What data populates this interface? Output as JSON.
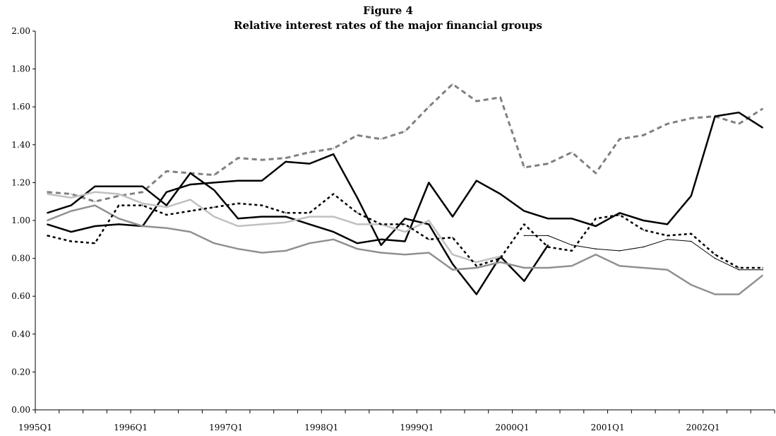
{
  "chart_data": {
    "type": "line",
    "title": "Figure 4",
    "subtitle": "Relative interest rates of the major financial groups",
    "xlabel": "",
    "ylabel": "",
    "ylim": [
      0,
      2
    ],
    "yticks": [
      "0.00",
      "0.20",
      "0.40",
      "0.60",
      "0.80",
      "1.00",
      "1.20",
      "1.40",
      "1.60",
      "1.80",
      "2.00"
    ],
    "categories": [
      "1995Q1",
      "1995Q2",
      "1995Q3",
      "1995Q4",
      "1996Q1",
      "1996Q2",
      "1996Q3",
      "1996Q4",
      "1997Q1",
      "1997Q2",
      "1997Q3",
      "1997Q4",
      "1998Q1",
      "1998Q2",
      "1998Q3",
      "1998Q4",
      "1999Q1",
      "1999Q2",
      "1999Q3",
      "1999Q4",
      "2000Q1",
      "2000Q2",
      "2000Q3",
      "2000Q4",
      "2001Q1",
      "2001Q2",
      "2001Q3",
      "2001Q4",
      "2002Q1",
      "2002Q2",
      "2002Q3"
    ],
    "xtick_labels": [
      "1995Q1",
      "1996Q1",
      "1997Q1",
      "1998Q1",
      "1999Q1",
      "2000Q1",
      "2001Q1",
      "2002Q1"
    ],
    "grid": false,
    "legend": "none",
    "series": [
      {
        "color": "#808080",
        "dash": "7,5",
        "width": 3,
        "values": [
          1.15,
          1.14,
          1.1,
          1.13,
          1.15,
          1.26,
          1.25,
          1.24,
          1.33,
          1.32,
          1.33,
          1.36,
          1.38,
          1.45,
          1.43,
          1.47,
          1.6,
          1.72,
          1.63,
          1.65,
          1.28,
          1.3,
          1.36,
          1.25,
          1.43,
          1.45,
          1.51,
          1.54,
          1.55,
          1.51,
          1.59
        ]
      },
      {
        "color": "#000000",
        "dash": "",
        "width": 2.5,
        "values": [
          1.04,
          1.08,
          1.18,
          1.18,
          1.18,
          1.08,
          1.25,
          1.16,
          1.01,
          1.02,
          1.02,
          0.98,
          0.94,
          0.88,
          0.9,
          0.89,
          1.2,
          1.02,
          1.21,
          1.14,
          1.05,
          1.01,
          1.01,
          0.97,
          1.04,
          1.0,
          0.98,
          1.13,
          1.55,
          1.57,
          1.49
        ]
      },
      {
        "color": "#000000",
        "dash": "",
        "width": 2.5,
        "values": [
          0.98,
          0.94,
          0.97,
          0.98,
          0.97,
          1.15,
          1.19,
          1.2,
          1.21,
          1.21,
          1.31,
          1.3,
          1.35,
          1.12,
          0.87,
          1.01,
          0.98,
          0.77,
          0.61,
          0.81,
          0.68,
          0.87,
          null,
          null,
          null,
          null,
          null,
          null,
          null,
          null,
          null
        ]
      },
      {
        "color": "#c0c0c0",
        "dash": "",
        "width": 2.5,
        "values": [
          1.14,
          1.12,
          1.15,
          1.14,
          1.09,
          1.07,
          1.11,
          1.02,
          0.97,
          0.98,
          0.99,
          1.02,
          1.02,
          0.98,
          0.98,
          0.94,
          1.0,
          0.82,
          0.78,
          0.81,
          null,
          null,
          null,
          null,
          null,
          null,
          null,
          null,
          null,
          null,
          null
        ]
      },
      {
        "color": "#909090",
        "dash": "",
        "width": 2.5,
        "values": [
          1.0,
          1.05,
          1.08,
          1.01,
          0.97,
          0.96,
          0.94,
          0.88,
          0.85,
          0.83,
          0.84,
          0.88,
          0.9,
          0.85,
          0.83,
          0.82,
          0.83,
          0.74,
          0.75,
          0.78,
          0.75,
          0.75,
          0.76,
          0.82,
          0.76,
          0.75,
          0.74,
          0.66,
          0.61,
          0.61,
          0.71
        ]
      },
      {
        "color": "#000000",
        "dash": "4,4",
        "width": 2.5,
        "values": [
          0.92,
          0.89,
          0.88,
          1.08,
          1.08,
          1.03,
          1.05,
          1.07,
          1.09,
          1.08,
          1.04,
          1.04,
          1.14,
          1.04,
          0.98,
          0.98,
          0.9,
          0.91,
          0.76,
          0.8,
          0.98,
          0.86,
          0.84,
          1.01,
          1.03,
          0.95,
          0.92,
          0.93,
          0.82,
          0.75,
          0.75
        ]
      },
      {
        "color": "#000000",
        "dash": "",
        "width": 1,
        "values": [
          null,
          null,
          null,
          null,
          null,
          null,
          null,
          null,
          null,
          null,
          null,
          null,
          null,
          null,
          null,
          null,
          null,
          null,
          null,
          null,
          0.92,
          0.92,
          0.87,
          0.85,
          0.84,
          0.86,
          0.9,
          0.89,
          0.8,
          0.74,
          0.74
        ]
      }
    ]
  }
}
